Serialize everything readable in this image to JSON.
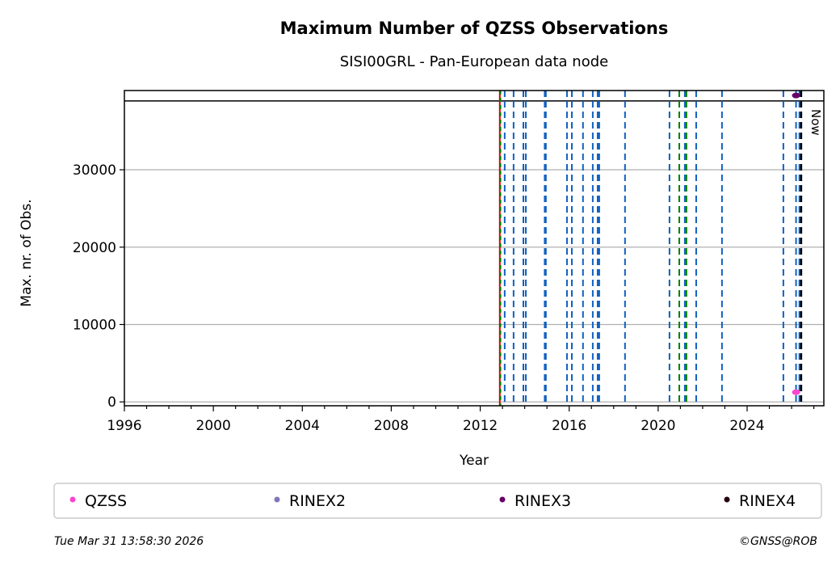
{
  "chart_data": {
    "type": "scatter",
    "title": "Maximum Number of QZSS Observations",
    "subtitle": "SISI00GRL - Pan-European data node",
    "xlabel": "Year",
    "ylabel": "Max. nr. of Obs.",
    "xlim": [
      1996,
      2027.45
    ],
    "ylim": [
      -500,
      40240
    ],
    "xticks": [
      1996,
      2000,
      2004,
      2008,
      2012,
      2016,
      2020,
      2024
    ],
    "yticks": [
      0,
      10000,
      20000,
      30000
    ],
    "grid": "y",
    "hline": 38900,
    "now_label": "Now",
    "now_x": 2026.43,
    "red_line_x": 2012.88,
    "green_lines_x": [
      2012.9,
      2020.95,
      2021.27
    ],
    "blue_dashed_x": [
      2013.1,
      2013.5,
      2013.94,
      2014.05,
      2014.9,
      2014.95,
      2015.9,
      2016.12,
      2016.62,
      2017.06,
      2017.28,
      2017.35,
      2018.51,
      2020.51,
      2021.2,
      2021.71,
      2022.87,
      2025.63,
      2026.35,
      2026.4,
      2026.2
    ],
    "series": [
      {
        "name": "QZSS",
        "color": "#ff44cc",
        "points": [
          [
            2026.2,
            1250
          ]
        ]
      },
      {
        "name": "RINEX2",
        "color": "#7f77bb",
        "points": []
      },
      {
        "name": "RINEX3",
        "color": "#660066",
        "points": [
          [
            2026.2,
            39600
          ]
        ]
      },
      {
        "name": "RINEX4",
        "color": "#220011",
        "points": []
      }
    ],
    "legend_placement": "bottom",
    "line_colors": {
      "blue": "#1060c0",
      "green": "#008000",
      "red": "#dd0000",
      "now": "#000000"
    }
  },
  "footer": {
    "timestamp": "Tue Mar 31 13:58:30 2026",
    "copyright": "©GNSS@ROB"
  }
}
